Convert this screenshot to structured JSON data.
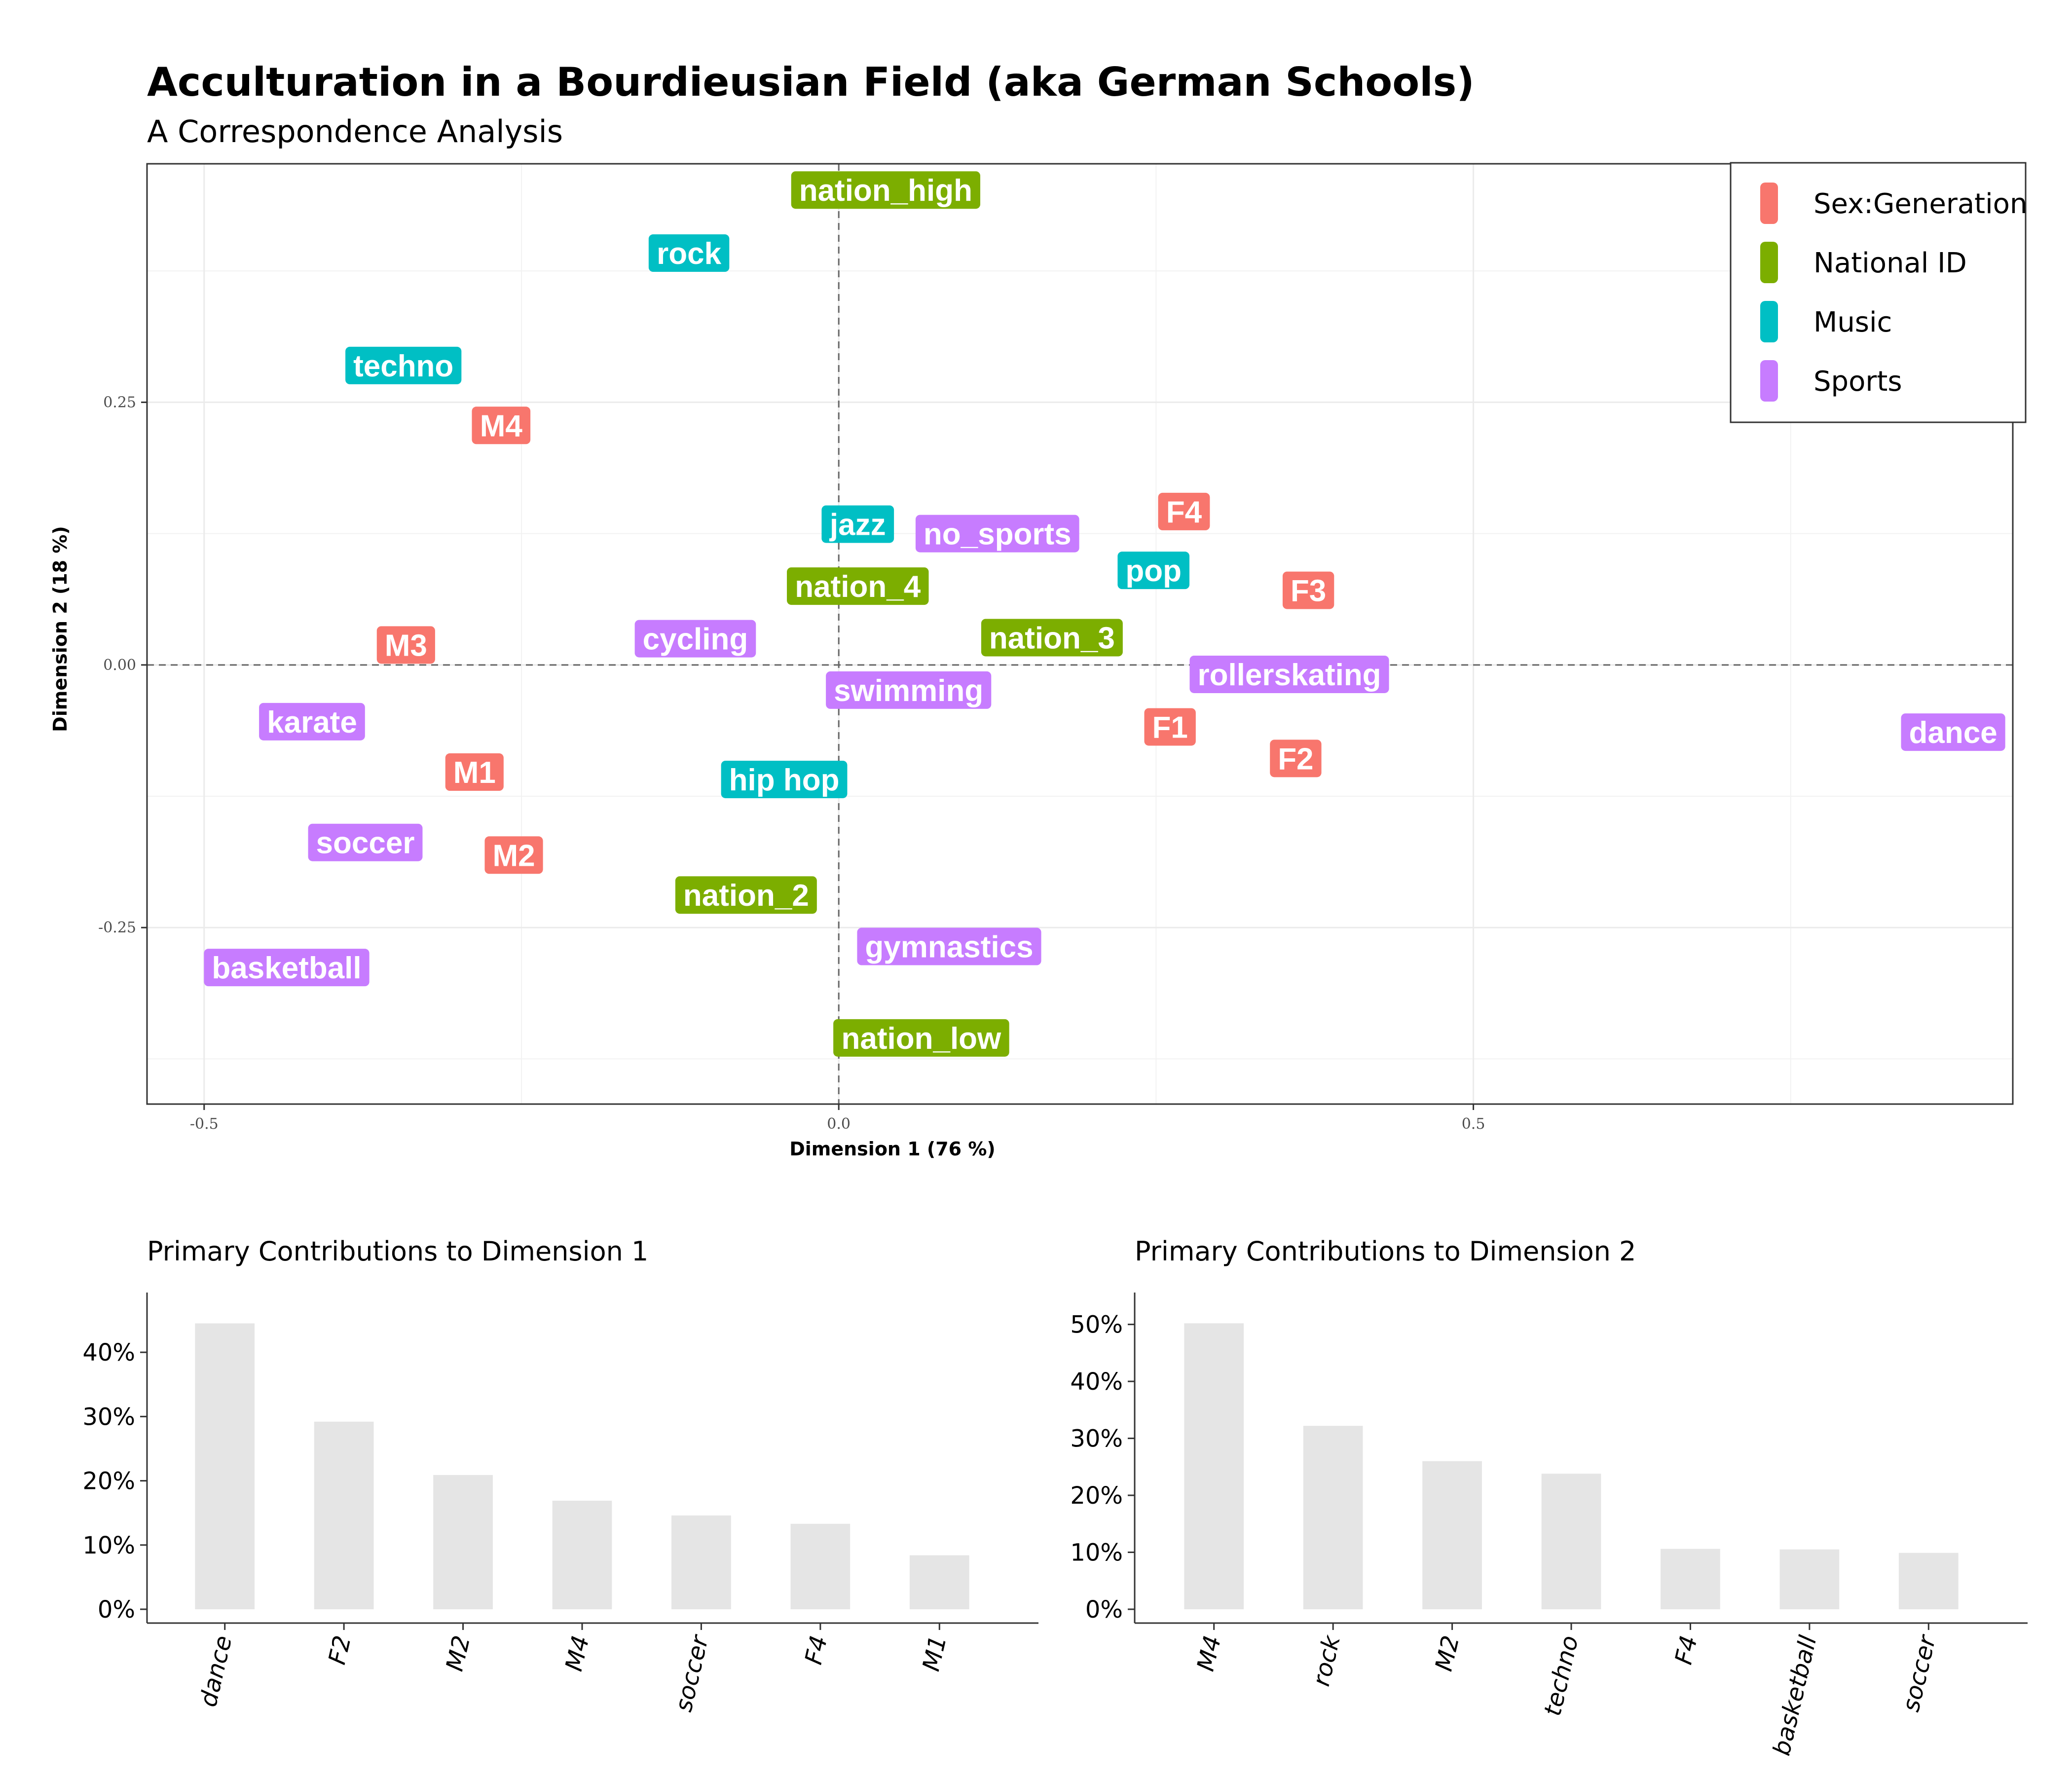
{
  "title": "Acculturation in a Bourdieusian Field (aka German Schools)",
  "subtitle": "A Correspondence Analysis",
  "colors": {
    "Sex:Generation": "#F8766D",
    "National ID": "#7CAE00",
    "Music": "#00BFC4",
    "Sports": "#C77CFF"
  },
  "chart_data": [
    {
      "type": "scatter",
      "xlabel": "Dimension 1 (76 %)",
      "ylabel": "Dimension 2 (18 %)",
      "xlim": [
        -0.545,
        0.925
      ],
      "ylim": [
        -0.418,
        0.477
      ],
      "xticks": [
        {
          "value": -0.5,
          "label": "-0.5"
        },
        {
          "value": 0.0,
          "label": "0.0"
        },
        {
          "value": 0.5,
          "label": "0.5"
        }
      ],
      "yticks": [
        {
          "value": -0.25,
          "label": "-0.25"
        },
        {
          "value": 0.0,
          "label": "0.00"
        },
        {
          "value": 0.25,
          "label": "0.25"
        }
      ],
      "grid": true,
      "reference_lines": [
        0,
        0
      ],
      "legend": {
        "position": "top-right",
        "entries": [
          "Sex:Generation",
          "National ID",
          "Music",
          "Sports"
        ]
      },
      "points": [
        {
          "label": "nation_high",
          "x": 0.037,
          "y": 0.452,
          "group": "National ID"
        },
        {
          "label": "rock",
          "x": -0.118,
          "y": 0.392,
          "group": "Music"
        },
        {
          "label": "techno",
          "x": -0.343,
          "y": 0.285,
          "group": "Music"
        },
        {
          "label": "M4",
          "x": -0.266,
          "y": 0.228,
          "group": "Sex:Generation"
        },
        {
          "label": "jazz",
          "x": 0.015,
          "y": 0.134,
          "group": "Music"
        },
        {
          "label": "no_sports",
          "x": 0.125,
          "y": 0.125,
          "group": "Sports"
        },
        {
          "label": "F4",
          "x": 0.272,
          "y": 0.146,
          "group": "Sex:Generation"
        },
        {
          "label": "pop",
          "x": 0.248,
          "y": 0.09,
          "group": "Music"
        },
        {
          "label": "nation_4",
          "x": 0.015,
          "y": 0.075,
          "group": "National ID"
        },
        {
          "label": "F3",
          "x": 0.37,
          "y": 0.071,
          "group": "Sex:Generation"
        },
        {
          "label": "M3",
          "x": -0.341,
          "y": 0.019,
          "group": "Sex:Generation"
        },
        {
          "label": "cycling",
          "x": -0.113,
          "y": 0.025,
          "group": "Sports"
        },
        {
          "label": "nation_3",
          "x": 0.168,
          "y": 0.026,
          "group": "National ID"
        },
        {
          "label": "rollerskating",
          "x": 0.355,
          "y": -0.009,
          "group": "Sports"
        },
        {
          "label": "swimming",
          "x": 0.055,
          "y": -0.024,
          "group": "Sports"
        },
        {
          "label": "karate",
          "x": -0.415,
          "y": -0.054,
          "group": "Sports"
        },
        {
          "label": "F1",
          "x": 0.261,
          "y": -0.059,
          "group": "Sex:Generation"
        },
        {
          "label": "dance",
          "x": 0.878,
          "y": -0.064,
          "group": "Sports"
        },
        {
          "label": "F2",
          "x": 0.36,
          "y": -0.089,
          "group": "Sex:Generation"
        },
        {
          "label": "M1",
          "x": -0.287,
          "y": -0.102,
          "group": "Sex:Generation"
        },
        {
          "label": "hip hop",
          "x": -0.043,
          "y": -0.109,
          "group": "Music"
        },
        {
          "label": "soccer",
          "x": -0.373,
          "y": -0.169,
          "group": "Sports"
        },
        {
          "label": "M2",
          "x": -0.256,
          "y": -0.181,
          "group": "Sex:Generation"
        },
        {
          "label": "nation_2",
          "x": -0.073,
          "y": -0.219,
          "group": "National ID"
        },
        {
          "label": "gymnastics",
          "x": 0.087,
          "y": -0.268,
          "group": "Sports"
        },
        {
          "label": "basketball",
          "x": -0.435,
          "y": -0.288,
          "group": "Sports"
        },
        {
          "label": "nation_low",
          "x": 0.065,
          "y": -0.355,
          "group": "National ID"
        }
      ]
    },
    {
      "type": "bar",
      "title": "Primary Contributions to Dimension 1",
      "categories": [
        "dance",
        "F2",
        "M2",
        "M4",
        "soccer",
        "F4",
        "M1"
      ],
      "values": [
        44.5,
        29.2,
        20.9,
        16.9,
        14.6,
        13.3,
        8.4
      ],
      "ylim": [
        0,
        47
      ],
      "yticks": [
        {
          "value": 0,
          "label": "0%"
        },
        {
          "value": 10,
          "label": "10%"
        },
        {
          "value": 20,
          "label": "20%"
        },
        {
          "value": 30,
          "label": "30%"
        },
        {
          "value": 40,
          "label": "40%"
        }
      ],
      "bar_color": "#e5e5e5"
    },
    {
      "type": "bar",
      "title": "Primary Contributions to Dimension 2",
      "categories": [
        "M4",
        "rock",
        "M2",
        "techno",
        "F4",
        "basketball",
        "soccer"
      ],
      "values": [
        50.2,
        32.2,
        26.0,
        23.8,
        10.6,
        10.5,
        9.9
      ],
      "ylim": [
        0,
        53
      ],
      "yticks": [
        {
          "value": 0,
          "label": "0%"
        },
        {
          "value": 10,
          "label": "10%"
        },
        {
          "value": 20,
          "label": "20%"
        },
        {
          "value": 30,
          "label": "30%"
        },
        {
          "value": 40,
          "label": "40%"
        },
        {
          "value": 50,
          "label": "50%"
        }
      ],
      "bar_color": "#e5e5e5"
    }
  ]
}
